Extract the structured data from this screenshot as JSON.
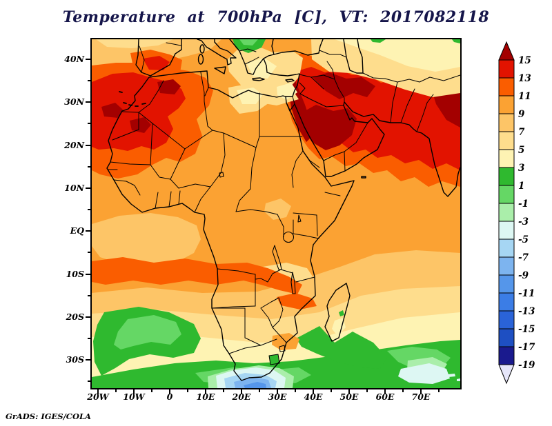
{
  "title": {
    "text": "Temperature at 700hPa [C], VT: 2017082118"
  },
  "footer": {
    "credit": "GrADS: IGES/COLA"
  },
  "axes": {
    "lat_major": [
      {
        "label": "40N",
        "value": 40
      },
      {
        "label": "30N",
        "value": 30
      },
      {
        "label": "20N",
        "value": 20
      },
      {
        "label": "10N",
        "value": 10
      },
      {
        "label": "EQ",
        "value": 0
      },
      {
        "label": "10S",
        "value": -10
      },
      {
        "label": "20S",
        "value": -20
      },
      {
        "label": "30S",
        "value": -30
      }
    ],
    "lat_minor": [
      35,
      25,
      15,
      5,
      -5,
      -15,
      -25,
      -35
    ],
    "lon_major": [
      {
        "label": "20W",
        "value": -20
      },
      {
        "label": "10W",
        "value": -10
      },
      {
        "label": "0",
        "value": 0
      },
      {
        "label": "10E",
        "value": 10
      },
      {
        "label": "20E",
        "value": 20
      },
      {
        "label": "30E",
        "value": 30
      },
      {
        "label": "40E",
        "value": 40
      },
      {
        "label": "50E",
        "value": 50
      },
      {
        "label": "60E",
        "value": 60
      },
      {
        "label": "70E",
        "value": 70
      }
    ],
    "lon_minor": [
      -15,
      -5,
      5,
      15,
      25,
      35,
      45,
      55,
      65,
      75
    ]
  },
  "palette": {
    "over15": "#a30000",
    "s13_15": "#e21300",
    "s11_13": "#fa5d00",
    "s9_11": "#fba233",
    "s7_9": "#fdc567",
    "s5_7": "#fedd8d",
    "s3_5": "#fef3b3",
    "s1_3": "#2fb92f",
    "sm1_1": "#65d765",
    "sm3_m1": "#aaeeaa",
    "sm5_m3": "#ddf7f3",
    "sm7_m5": "#a6d6f3",
    "sm9_m7": "#7db4ef",
    "sm11_m9": "#5596ea",
    "sm13_m11": "#3b7de6",
    "sm15_m13": "#2a63d8",
    "sm17_m15": "#1e4fc2",
    "sm19_m17": "#1a1a8e",
    "underm19": "#e6e6fa"
  },
  "colorbar": {
    "boundary_labels": [
      "15",
      "13",
      "11",
      "9",
      "7",
      "5",
      "3",
      "1",
      "-1",
      "-3",
      "-5",
      "-7",
      "-9",
      "-11",
      "-13",
      "-15",
      "-17",
      "-19"
    ],
    "segment_palette_keys": [
      "s13_15",
      "s11_13",
      "s9_11",
      "s7_9",
      "s5_7",
      "s3_5",
      "s1_3",
      "sm1_1",
      "sm3_m1",
      "sm5_m3",
      "sm7_m5",
      "sm9_m7",
      "sm11_m9",
      "sm13_m11",
      "sm15_m13",
      "sm17_m15",
      "sm19_m17"
    ],
    "over_key": "over15",
    "under_key": "underm19"
  },
  "chart_data": {
    "type": "heatmap",
    "subtype": "filled_contour_weather_map",
    "title": "Temperature at 700hPa [C], VT: 2017082118",
    "variable": "Temperature",
    "pressure_level": "700hPa",
    "units": "C",
    "valid_time": "2017082118",
    "region": {
      "lon_min": -21.7,
      "lon_max": 81.0,
      "lat_min": -36.6,
      "lat_max": 44.7
    },
    "contour_levels": [
      -19,
      -17,
      -15,
      -13,
      -11,
      -9,
      -7,
      -5,
      -3,
      -1,
      1,
      3,
      5,
      7,
      9,
      11,
      13,
      15
    ],
    "colorbar_labels_top_to_bottom": [
      "15",
      "13",
      "11",
      "9",
      "7",
      "5",
      "3",
      "1",
      "-1",
      "-3",
      "-5",
      "-7",
      "-9",
      "-11",
      "-13",
      "-15",
      "-17",
      "-19"
    ],
    "palette_colors_warm_to_cold": [
      "#a30000",
      "#e21300",
      "#fa5d00",
      "#fba233",
      "#fdc567",
      "#fedd8d",
      "#fef3b3",
      "#2fb92f",
      "#65d765",
      "#aaeeaa",
      "#ddf7f3",
      "#a6d6f3",
      "#7db4ef",
      "#5596ea",
      "#3b7de6",
      "#2a63d8",
      "#1e4fc2",
      "#1a1a8e",
      "#e6e6fa"
    ],
    "legend_position": "right",
    "grid": "off",
    "features": [
      "Hottest air 13-15C with cores above 15C over the Middle East, Arabian Peninsula, Iran and Afghanistan",
      "13-15C red region over Morocco, Algeria and the Western Sahara coast",
      "Dark red strip along the Red Sea and eastern Egypt",
      "9-11C orange over most of tropical Africa and the Indian Ocean",
      "11-13C orange-red band near 10S across the South Atlantic, Angola and Mozambique Channel",
      "Cool pale band 3-7C over the Aegean, Anatolia north rim, Caspian region and Central Asia",
      "1-3C green over the Balkans at the top edge",
      "Greens (below 3C) over the ocean south of 30S, southwest and southeast of South Africa",
      "Cold pool below -9C centered near 35S 20E, south of Cape Town",
      "Lesotho highlands shown as a small green patch"
    ]
  }
}
